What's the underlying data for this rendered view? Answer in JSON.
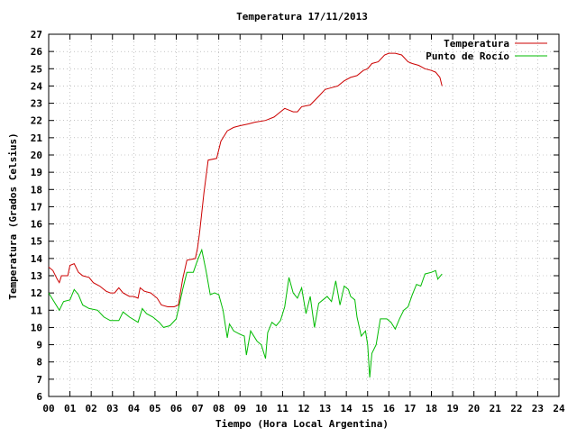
{
  "chart_data": {
    "type": "line",
    "title": "Temperatura 17/11/2013",
    "xlabel": "Tiempo (Hora Local Argentina)",
    "ylabel": "Temperatura (Grados Celsius)",
    "xlim": [
      0,
      24
    ],
    "ylim": [
      6,
      27
    ],
    "x_ticks": [
      0,
      1,
      2,
      3,
      4,
      5,
      6,
      7,
      8,
      9,
      10,
      11,
      12,
      13,
      14,
      15,
      16,
      17,
      18,
      19,
      20,
      21,
      22,
      23,
      24
    ],
    "x_tick_labels": [
      "00",
      "01",
      "02",
      "03",
      "04",
      "05",
      "06",
      "07",
      "08",
      "09",
      "10",
      "11",
      "12",
      "13",
      "14",
      "15",
      "16",
      "17",
      "18",
      "19",
      "20",
      "21",
      "22",
      "23",
      "24"
    ],
    "y_ticks": [
      6,
      7,
      8,
      9,
      10,
      11,
      12,
      13,
      14,
      15,
      16,
      17,
      18,
      19,
      20,
      21,
      22,
      23,
      24,
      25,
      26,
      27
    ],
    "y_tick_labels": [
      "6",
      "7",
      "8",
      "9",
      "10",
      "11",
      "12",
      "13",
      "14",
      "15",
      "16",
      "17",
      "18",
      "19",
      "20",
      "21",
      "22",
      "23",
      "24",
      "25",
      "26",
      "27"
    ],
    "grid": true,
    "legend_position": "top-right",
    "series": [
      {
        "name": "Temperatura",
        "color": "#cc0000",
        "points": [
          [
            0.0,
            13.5
          ],
          [
            0.2,
            13.3
          ],
          [
            0.4,
            12.8
          ],
          [
            0.5,
            12.6
          ],
          [
            0.6,
            13.0
          ],
          [
            0.9,
            13.0
          ],
          [
            1.0,
            13.6
          ],
          [
            1.2,
            13.7
          ],
          [
            1.4,
            13.2
          ],
          [
            1.6,
            13.0
          ],
          [
            1.9,
            12.9
          ],
          [
            2.1,
            12.6
          ],
          [
            2.4,
            12.4
          ],
          [
            2.7,
            12.1
          ],
          [
            2.9,
            12.0
          ],
          [
            3.1,
            12.0
          ],
          [
            3.3,
            12.3
          ],
          [
            3.5,
            12.0
          ],
          [
            3.8,
            11.8
          ],
          [
            4.0,
            11.8
          ],
          [
            4.2,
            11.7
          ],
          [
            4.3,
            12.3
          ],
          [
            4.5,
            12.1
          ],
          [
            4.8,
            12.0
          ],
          [
            5.1,
            11.7
          ],
          [
            5.3,
            11.3
          ],
          [
            5.6,
            11.2
          ],
          [
            5.9,
            11.2
          ],
          [
            6.1,
            11.3
          ],
          [
            6.3,
            12.8
          ],
          [
            6.5,
            13.9
          ],
          [
            6.9,
            14.0
          ],
          [
            7.0,
            14.6
          ],
          [
            7.1,
            15.5
          ],
          [
            7.3,
            17.8
          ],
          [
            7.5,
            19.7
          ],
          [
            7.9,
            19.8
          ],
          [
            8.1,
            20.8
          ],
          [
            8.4,
            21.4
          ],
          [
            8.7,
            21.6
          ],
          [
            9.0,
            21.7
          ],
          [
            9.4,
            21.8
          ],
          [
            9.7,
            21.9
          ],
          [
            10.2,
            22.0
          ],
          [
            10.6,
            22.2
          ],
          [
            10.9,
            22.5
          ],
          [
            11.1,
            22.7
          ],
          [
            11.3,
            22.6
          ],
          [
            11.5,
            22.5
          ],
          [
            11.7,
            22.5
          ],
          [
            11.9,
            22.8
          ],
          [
            12.3,
            22.9
          ],
          [
            12.7,
            23.4
          ],
          [
            13.0,
            23.8
          ],
          [
            13.3,
            23.9
          ],
          [
            13.6,
            24.0
          ],
          [
            13.9,
            24.3
          ],
          [
            14.2,
            24.5
          ],
          [
            14.5,
            24.6
          ],
          [
            14.8,
            24.9
          ],
          [
            15.0,
            25.0
          ],
          [
            15.2,
            25.3
          ],
          [
            15.5,
            25.4
          ],
          [
            15.8,
            25.8
          ],
          [
            16.0,
            25.9
          ],
          [
            16.3,
            25.9
          ],
          [
            16.6,
            25.8
          ],
          [
            16.9,
            25.4
          ],
          [
            17.1,
            25.3
          ],
          [
            17.4,
            25.2
          ],
          [
            17.7,
            25.0
          ],
          [
            18.0,
            24.9
          ],
          [
            18.2,
            24.8
          ],
          [
            18.4,
            24.5
          ],
          [
            18.5,
            24.0
          ]
        ]
      },
      {
        "name": "Punto de Rocío",
        "color": "#00bb00",
        "points": [
          [
            0.0,
            12.0
          ],
          [
            0.3,
            11.4
          ],
          [
            0.5,
            11.0
          ],
          [
            0.7,
            11.5
          ],
          [
            1.0,
            11.6
          ],
          [
            1.2,
            12.2
          ],
          [
            1.4,
            11.9
          ],
          [
            1.6,
            11.3
          ],
          [
            1.9,
            11.1
          ],
          [
            2.3,
            11.0
          ],
          [
            2.6,
            10.6
          ],
          [
            2.9,
            10.4
          ],
          [
            3.3,
            10.4
          ],
          [
            3.5,
            10.9
          ],
          [
            3.8,
            10.6
          ],
          [
            4.2,
            10.3
          ],
          [
            4.4,
            11.1
          ],
          [
            4.6,
            10.8
          ],
          [
            4.9,
            10.6
          ],
          [
            5.2,
            10.3
          ],
          [
            5.4,
            10.0
          ],
          [
            5.7,
            10.1
          ],
          [
            6.0,
            10.5
          ],
          [
            6.3,
            12.2
          ],
          [
            6.5,
            13.2
          ],
          [
            6.8,
            13.2
          ],
          [
            7.0,
            13.9
          ],
          [
            7.2,
            14.5
          ],
          [
            7.4,
            13.3
          ],
          [
            7.6,
            11.9
          ],
          [
            7.8,
            12.0
          ],
          [
            8.0,
            11.9
          ],
          [
            8.2,
            11.0
          ],
          [
            8.4,
            9.4
          ],
          [
            8.5,
            10.2
          ],
          [
            8.7,
            9.8
          ],
          [
            9.0,
            9.6
          ],
          [
            9.2,
            9.5
          ],
          [
            9.3,
            8.4
          ],
          [
            9.5,
            9.8
          ],
          [
            9.8,
            9.2
          ],
          [
            10.0,
            9.0
          ],
          [
            10.2,
            8.2
          ],
          [
            10.3,
            9.7
          ],
          [
            10.5,
            10.3
          ],
          [
            10.7,
            10.1
          ],
          [
            10.9,
            10.4
          ],
          [
            11.1,
            11.2
          ],
          [
            11.3,
            12.9
          ],
          [
            11.5,
            12.0
          ],
          [
            11.7,
            11.7
          ],
          [
            11.9,
            12.3
          ],
          [
            12.1,
            10.8
          ],
          [
            12.3,
            11.8
          ],
          [
            12.5,
            10.0
          ],
          [
            12.7,
            11.4
          ],
          [
            12.9,
            11.6
          ],
          [
            13.1,
            11.8
          ],
          [
            13.3,
            11.5
          ],
          [
            13.5,
            12.7
          ],
          [
            13.7,
            11.3
          ],
          [
            13.9,
            12.4
          ],
          [
            14.1,
            12.2
          ],
          [
            14.2,
            11.8
          ],
          [
            14.4,
            11.6
          ],
          [
            14.5,
            10.6
          ],
          [
            14.7,
            9.5
          ],
          [
            14.9,
            9.8
          ],
          [
            15.0,
            9.0
          ],
          [
            15.1,
            7.1
          ],
          [
            15.2,
            8.5
          ],
          [
            15.4,
            9.0
          ],
          [
            15.6,
            10.5
          ],
          [
            15.9,
            10.5
          ],
          [
            16.1,
            10.3
          ],
          [
            16.3,
            9.9
          ],
          [
            16.5,
            10.5
          ],
          [
            16.7,
            11.0
          ],
          [
            16.9,
            11.2
          ],
          [
            17.1,
            11.9
          ],
          [
            17.3,
            12.5
          ],
          [
            17.5,
            12.4
          ],
          [
            17.7,
            13.1
          ],
          [
            18.0,
            13.2
          ],
          [
            18.2,
            13.3
          ],
          [
            18.3,
            12.8
          ],
          [
            18.5,
            13.1
          ]
        ]
      }
    ]
  }
}
